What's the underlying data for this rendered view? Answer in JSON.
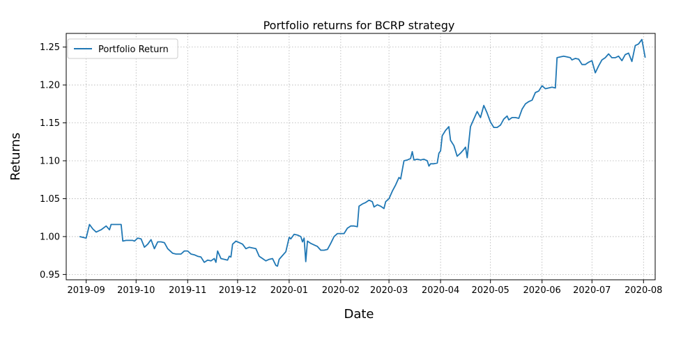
{
  "chart_data": {
    "type": "line",
    "title": "Portfolio returns for BCRP strategy",
    "xlabel": "Date",
    "ylabel": "Returns",
    "xlim": [
      "2019-08-20",
      "2020-08-08"
    ],
    "ylim": [
      0.943,
      1.268
    ],
    "grid": true,
    "grid_style": "dotted",
    "legend_position": "top-left",
    "line_color": "#1f77b4",
    "x_ticks": [
      "2019-09",
      "2019-10",
      "2019-11",
      "2019-12",
      "2020-01",
      "2020-02",
      "2020-03",
      "2020-04",
      "2020-05",
      "2020-06",
      "2020-07",
      "2020-08"
    ],
    "y_ticks": [
      "0.95",
      "1.00",
      "1.05",
      "1.10",
      "1.15",
      "1.20",
      "1.25"
    ],
    "series": [
      {
        "name": "Portfolio Return",
        "points": [
          [
            "2019-08-28",
            1.0
          ],
          [
            "2019-08-30",
            0.999
          ],
          [
            "2019-09-01",
            0.998
          ],
          [
            "2019-09-03",
            1.016
          ],
          [
            "2019-09-05",
            1.01
          ],
          [
            "2019-09-07",
            1.006
          ],
          [
            "2019-09-10",
            1.009
          ],
          [
            "2019-09-13",
            1.014
          ],
          [
            "2019-09-15",
            1.009
          ],
          [
            "2019-09-16",
            1.016
          ],
          [
            "2019-09-19",
            1.016
          ],
          [
            "2019-09-20",
            1.016
          ],
          [
            "2019-09-22",
            1.016
          ],
          [
            "2019-09-23",
            0.994
          ],
          [
            "2019-09-25",
            0.995
          ],
          [
            "2019-09-27",
            0.995
          ],
          [
            "2019-09-29",
            0.995
          ],
          [
            "2019-09-30",
            0.994
          ],
          [
            "2019-10-02",
            0.998
          ],
          [
            "2019-10-04",
            0.997
          ],
          [
            "2019-10-06",
            0.986
          ],
          [
            "2019-10-08",
            0.99
          ],
          [
            "2019-10-10",
            0.996
          ],
          [
            "2019-10-12",
            0.984
          ],
          [
            "2019-10-14",
            0.993
          ],
          [
            "2019-10-16",
            0.993
          ],
          [
            "2019-10-18",
            0.992
          ],
          [
            "2019-10-20",
            0.984
          ],
          [
            "2019-10-23",
            0.978
          ],
          [
            "2019-10-25",
            0.977
          ],
          [
            "2019-10-28",
            0.977
          ],
          [
            "2019-10-30",
            0.981
          ],
          [
            "2019-11-01",
            0.981
          ],
          [
            "2019-11-03",
            0.977
          ],
          [
            "2019-11-05",
            0.976
          ],
          [
            "2019-11-07",
            0.974
          ],
          [
            "2019-11-09",
            0.973
          ],
          [
            "2019-11-11",
            0.966
          ],
          [
            "2019-11-13",
            0.969
          ],
          [
            "2019-11-15",
            0.968
          ],
          [
            "2019-11-17",
            0.971
          ],
          [
            "2019-11-18",
            0.966
          ],
          [
            "2019-11-19",
            0.981
          ],
          [
            "2019-11-21",
            0.971
          ],
          [
            "2019-11-23",
            0.97
          ],
          [
            "2019-11-25",
            0.969
          ],
          [
            "2019-11-26",
            0.974
          ],
          [
            "2019-11-27",
            0.973
          ],
          [
            "2019-11-28",
            0.99
          ],
          [
            "2019-11-30",
            0.994
          ],
          [
            "2019-12-02",
            0.992
          ],
          [
            "2019-12-04",
            0.99
          ],
          [
            "2019-12-06",
            0.984
          ],
          [
            "2019-12-08",
            0.986
          ],
          [
            "2019-12-10",
            0.985
          ],
          [
            "2019-12-12",
            0.984
          ],
          [
            "2019-12-14",
            0.974
          ],
          [
            "2019-12-16",
            0.971
          ],
          [
            "2019-12-18",
            0.968
          ],
          [
            "2019-12-20",
            0.97
          ],
          [
            "2019-12-22",
            0.971
          ],
          [
            "2019-12-24",
            0.962
          ],
          [
            "2019-12-25",
            0.961
          ],
          [
            "2019-12-26",
            0.97
          ],
          [
            "2019-12-28",
            0.975
          ],
          [
            "2019-12-30",
            0.98
          ],
          [
            "2020-01-01",
            0.999
          ],
          [
            "2020-01-02",
            0.997
          ],
          [
            "2020-01-04",
            1.003
          ],
          [
            "2020-01-06",
            1.002
          ],
          [
            "2020-01-08",
            1.0
          ],
          [
            "2020-01-09",
            0.993
          ],
          [
            "2020-01-10",
            0.998
          ],
          [
            "2020-01-11",
            0.967
          ],
          [
            "2020-01-12",
            0.994
          ],
          [
            "2020-01-14",
            0.991
          ],
          [
            "2020-01-16",
            0.989
          ],
          [
            "2020-01-18",
            0.987
          ],
          [
            "2020-01-20",
            0.982
          ],
          [
            "2020-01-22",
            0.982
          ],
          [
            "2020-01-24",
            0.983
          ],
          [
            "2020-01-26",
            0.991
          ],
          [
            "2020-01-28",
            1.0
          ],
          [
            "2020-01-30",
            1.004
          ],
          [
            "2020-02-01",
            1.004
          ],
          [
            "2020-02-03",
            1.004
          ],
          [
            "2020-02-05",
            1.011
          ],
          [
            "2020-02-07",
            1.014
          ],
          [
            "2020-02-09",
            1.014
          ],
          [
            "2020-02-11",
            1.013
          ],
          [
            "2020-02-12",
            1.04
          ],
          [
            "2020-02-14",
            1.043
          ],
          [
            "2020-02-16",
            1.045
          ],
          [
            "2020-02-18",
            1.048
          ],
          [
            "2020-02-20",
            1.046
          ],
          [
            "2020-02-21",
            1.039
          ],
          [
            "2020-02-23",
            1.042
          ],
          [
            "2020-02-25",
            1.04
          ],
          [
            "2020-02-27",
            1.037
          ],
          [
            "2020-02-28",
            1.046
          ],
          [
            "2020-03-01",
            1.05
          ],
          [
            "2020-03-03",
            1.06
          ],
          [
            "2020-03-05",
            1.068
          ],
          [
            "2020-03-07",
            1.078
          ],
          [
            "2020-03-08",
            1.076
          ],
          [
            "2020-03-10",
            1.1
          ],
          [
            "2020-03-12",
            1.101
          ],
          [
            "2020-03-14",
            1.103
          ],
          [
            "2020-03-15",
            1.112
          ],
          [
            "2020-03-16",
            1.101
          ],
          [
            "2020-03-18",
            1.102
          ],
          [
            "2020-03-20",
            1.101
          ],
          [
            "2020-03-22",
            1.102
          ],
          [
            "2020-03-24",
            1.1
          ],
          [
            "2020-03-25",
            1.093
          ],
          [
            "2020-03-26",
            1.096
          ],
          [
            "2020-03-28",
            1.096
          ],
          [
            "2020-03-30",
            1.097
          ],
          [
            "2020-03-31",
            1.11
          ],
          [
            "2020-04-01",
            1.113
          ],
          [
            "2020-04-02",
            1.133
          ],
          [
            "2020-04-04",
            1.14
          ],
          [
            "2020-04-06",
            1.145
          ],
          [
            "2020-04-07",
            1.127
          ],
          [
            "2020-04-09",
            1.12
          ],
          [
            "2020-04-11",
            1.106
          ],
          [
            "2020-04-13",
            1.11
          ],
          [
            "2020-04-15",
            1.115
          ],
          [
            "2020-04-16",
            1.118
          ],
          [
            "2020-04-17",
            1.104
          ],
          [
            "2020-04-19",
            1.145
          ],
          [
            "2020-04-21",
            1.155
          ],
          [
            "2020-04-23",
            1.165
          ],
          [
            "2020-04-25",
            1.157
          ],
          [
            "2020-04-27",
            1.173
          ],
          [
            "2020-04-29",
            1.163
          ],
          [
            "2020-05-01",
            1.151
          ],
          [
            "2020-05-03",
            1.144
          ],
          [
            "2020-05-05",
            1.144
          ],
          [
            "2020-05-07",
            1.147
          ],
          [
            "2020-05-09",
            1.155
          ],
          [
            "2020-05-11",
            1.159
          ],
          [
            "2020-05-12",
            1.154
          ],
          [
            "2020-05-14",
            1.157
          ],
          [
            "2020-05-16",
            1.157
          ],
          [
            "2020-05-18",
            1.156
          ],
          [
            "2020-05-20",
            1.168
          ],
          [
            "2020-05-22",
            1.175
          ],
          [
            "2020-05-24",
            1.178
          ],
          [
            "2020-05-26",
            1.18
          ],
          [
            "2020-05-28",
            1.19
          ],
          [
            "2020-05-30",
            1.192
          ],
          [
            "2020-06-01",
            1.199
          ],
          [
            "2020-06-03",
            1.195
          ],
          [
            "2020-06-05",
            1.196
          ],
          [
            "2020-06-07",
            1.197
          ],
          [
            "2020-06-09",
            1.196
          ],
          [
            "2020-06-10",
            1.236
          ],
          [
            "2020-06-12",
            1.237
          ],
          [
            "2020-06-14",
            1.238
          ],
          [
            "2020-06-16",
            1.237
          ],
          [
            "2020-06-18",
            1.236
          ],
          [
            "2020-06-19",
            1.233
          ],
          [
            "2020-06-21",
            1.235
          ],
          [
            "2020-06-23",
            1.234
          ],
          [
            "2020-06-25",
            1.227
          ],
          [
            "2020-06-27",
            1.227
          ],
          [
            "2020-06-29",
            1.23
          ],
          [
            "2020-07-01",
            1.232
          ],
          [
            "2020-07-03",
            1.216
          ],
          [
            "2020-07-05",
            1.225
          ],
          [
            "2020-07-07",
            1.233
          ],
          [
            "2020-07-09",
            1.236
          ],
          [
            "2020-07-11",
            1.241
          ],
          [
            "2020-07-13",
            1.236
          ],
          [
            "2020-07-15",
            1.236
          ],
          [
            "2020-07-17",
            1.238
          ],
          [
            "2020-07-19",
            1.232
          ],
          [
            "2020-07-21",
            1.24
          ],
          [
            "2020-07-23",
            1.242
          ],
          [
            "2020-07-25",
            1.231
          ],
          [
            "2020-07-27",
            1.252
          ],
          [
            "2020-07-29",
            1.254
          ],
          [
            "2020-07-31",
            1.26
          ],
          [
            "2020-08-02",
            1.236
          ]
        ]
      }
    ]
  }
}
